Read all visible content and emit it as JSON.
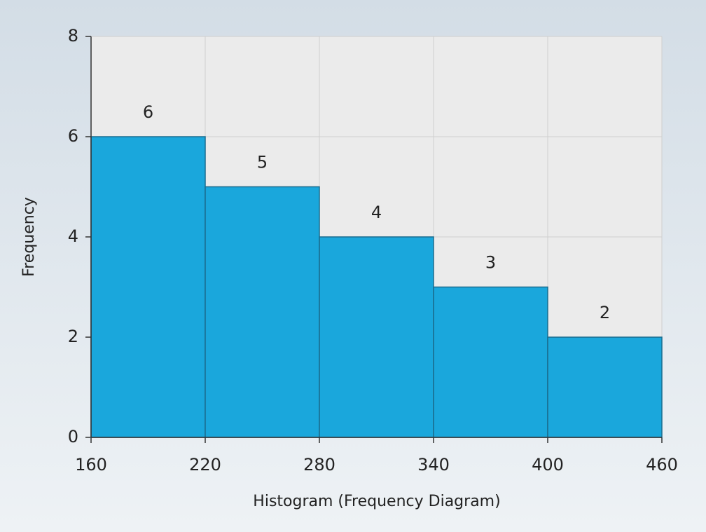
{
  "chart_data": {
    "type": "histogram",
    "xlabel": "Histogram (Frequency Diagram)",
    "ylabel": "Frequency",
    "bins": [
      160,
      220,
      280,
      340,
      400,
      460
    ],
    "counts": [
      6,
      5,
      4,
      3,
      2
    ],
    "color": "#1aa7dc",
    "xlim": [
      160,
      460
    ],
    "xticks": [
      160,
      220,
      280,
      340,
      400,
      460
    ],
    "ylim": [
      0,
      8
    ],
    "yticks": [
      0,
      2,
      4,
      6,
      8
    ],
    "grid": true
  }
}
